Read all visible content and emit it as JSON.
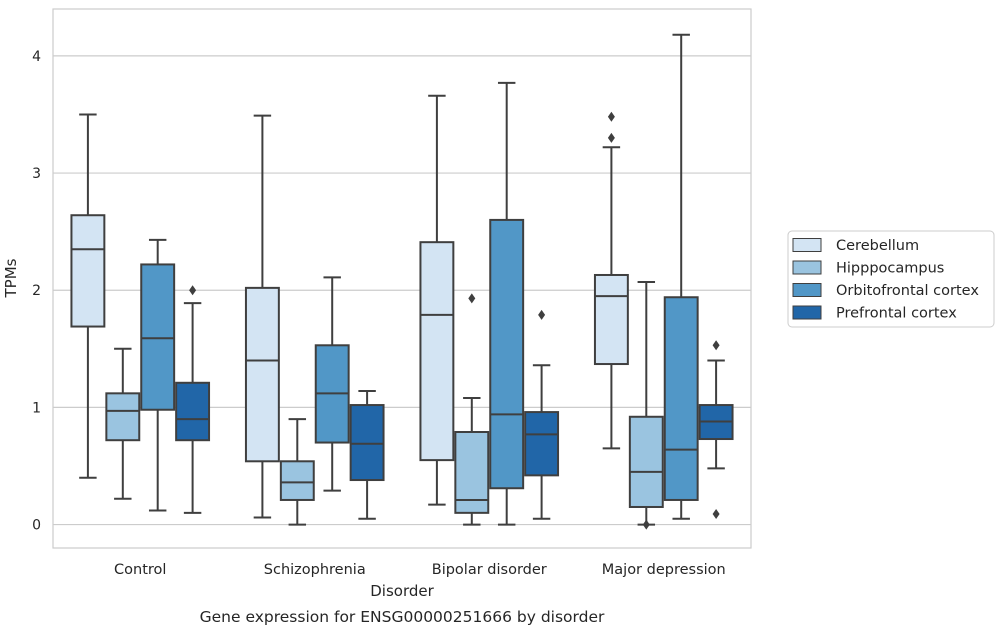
{
  "chart_data": {
    "type": "box",
    "caption": "Gene expression for ENSG00000251666 by disorder",
    "xlabel": "Disorder",
    "ylabel": "TPMs",
    "ylim": [
      -0.2,
      4.4
    ],
    "yticks": [
      0,
      1,
      2,
      3,
      4
    ],
    "grid": "horizontal",
    "legend_position": "right",
    "categories": [
      "Control",
      "Schizophrenia",
      "Bipolar disorder",
      "Major depression"
    ],
    "series": [
      {
        "name": "Cerebellum",
        "color": "#d3e4f3",
        "boxes": [
          {
            "whisker_low": 0.4,
            "q1": 1.69,
            "median": 2.35,
            "q3": 2.64,
            "whisker_high": 3.5,
            "outliers": []
          },
          {
            "whisker_low": 0.06,
            "q1": 0.54,
            "median": 1.4,
            "q3": 2.02,
            "whisker_high": 3.49,
            "outliers": []
          },
          {
            "whisker_low": 0.17,
            "q1": 0.55,
            "median": 1.79,
            "q3": 2.41,
            "whisker_high": 3.66,
            "outliers": []
          },
          {
            "whisker_low": 0.65,
            "q1": 1.37,
            "median": 1.95,
            "q3": 2.13,
            "whisker_high": 3.22,
            "outliers": [
              3.3,
              3.48
            ]
          }
        ]
      },
      {
        "name": "Hipppocampus",
        "color": "#9ac4e0",
        "boxes": [
          {
            "whisker_low": 0.22,
            "q1": 0.72,
            "median": 0.97,
            "q3": 1.12,
            "whisker_high": 1.5,
            "outliers": []
          },
          {
            "whisker_low": 0.0,
            "q1": 0.21,
            "median": 0.36,
            "q3": 0.54,
            "whisker_high": 0.9,
            "outliers": []
          },
          {
            "whisker_low": 0.0,
            "q1": 0.1,
            "median": 0.21,
            "q3": 0.79,
            "whisker_high": 1.08,
            "outliers": [
              1.93
            ]
          },
          {
            "whisker_low": 0.0,
            "q1": 0.15,
            "median": 0.45,
            "q3": 0.92,
            "whisker_high": 2.07,
            "outliers": [
              0.0
            ]
          }
        ]
      },
      {
        "name": "Orbitofrontal cortex",
        "color": "#5197c7",
        "boxes": [
          {
            "whisker_low": 0.12,
            "q1": 0.98,
            "median": 1.59,
            "q3": 2.22,
            "whisker_high": 2.43,
            "outliers": []
          },
          {
            "whisker_low": 0.29,
            "q1": 0.7,
            "median": 1.12,
            "q3": 1.53,
            "whisker_high": 2.11,
            "outliers": []
          },
          {
            "whisker_low": 0.0,
            "q1": 0.31,
            "median": 0.94,
            "q3": 2.6,
            "whisker_high": 3.77,
            "outliers": []
          },
          {
            "whisker_low": 0.05,
            "q1": 0.21,
            "median": 0.64,
            "q3": 1.94,
            "whisker_high": 4.18,
            "outliers": []
          }
        ]
      },
      {
        "name": "Prefrontal cortex",
        "color": "#2166a8",
        "boxes": [
          {
            "whisker_low": 0.1,
            "q1": 0.72,
            "median": 0.9,
            "q3": 1.21,
            "whisker_high": 1.89,
            "outliers": [
              2.0
            ]
          },
          {
            "whisker_low": 0.05,
            "q1": 0.38,
            "median": 0.69,
            "q3": 1.02,
            "whisker_high": 1.14,
            "outliers": []
          },
          {
            "whisker_low": 0.05,
            "q1": 0.42,
            "median": 0.77,
            "q3": 0.96,
            "whisker_high": 1.36,
            "outliers": [
              1.79
            ]
          },
          {
            "whisker_low": 0.48,
            "q1": 0.73,
            "median": 0.88,
            "q3": 1.02,
            "whisker_high": 1.4,
            "outliers": [
              0.09,
              1.53
            ]
          }
        ]
      }
    ]
  }
}
